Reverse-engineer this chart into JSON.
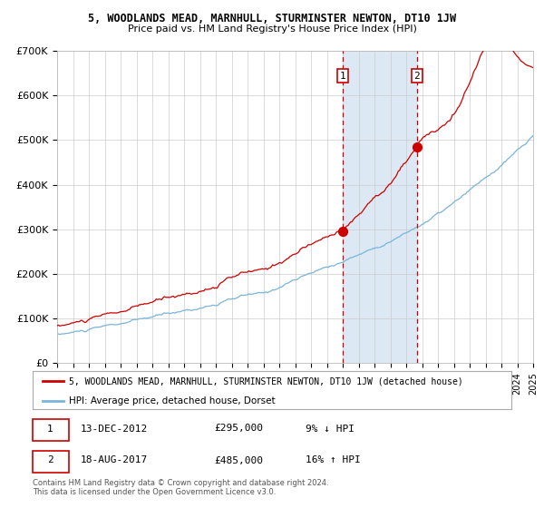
{
  "title": "5, WOODLANDS MEAD, MARNHULL, STURMINSTER NEWTON, DT10 1JW",
  "subtitle": "Price paid vs. HM Land Registry's House Price Index (HPI)",
  "legend_line1": "5, WOODLANDS MEAD, MARNHULL, STURMINSTER NEWTON, DT10 1JW (detached house)",
  "legend_line2": "HPI: Average price, detached house, Dorset",
  "footnote": "Contains HM Land Registry data © Crown copyright and database right 2024.\nThis data is licensed under the Open Government Licence v3.0.",
  "sale1_date_label": "13-DEC-2012",
  "sale1_price_label": "£295,000",
  "sale1_hpi_label": "9% ↓ HPI",
  "sale2_date_label": "18-AUG-2017",
  "sale2_price_label": "£485,000",
  "sale2_hpi_label": "16% ↑ HPI",
  "sale1_year": 2012.96,
  "sale1_price": 295000,
  "sale2_year": 2017.63,
  "sale2_price": 485000,
  "hpi_color": "#7ab4d8",
  "price_color": "#cc0000",
  "highlight_color": "#dce9f5",
  "dashed_line_color": "#cc0000",
  "ylim": [
    0,
    700000
  ],
  "yticks": [
    0,
    100000,
    200000,
    300000,
    400000,
    500000,
    600000,
    700000
  ],
  "ytick_labels": [
    "£0",
    "£100K",
    "£200K",
    "£300K",
    "£400K",
    "£500K",
    "£600K",
    "£700K"
  ],
  "start_year": 1995,
  "end_year": 2025
}
